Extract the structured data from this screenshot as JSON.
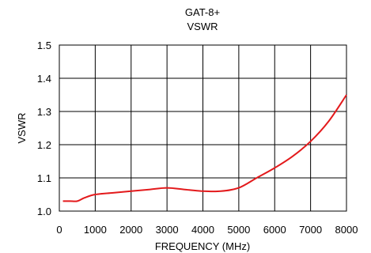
{
  "chart_data": {
    "type": "line",
    "title": "GAT-8+",
    "subtitle": "VSWR",
    "xlabel": "FREQUENCY (MHz)",
    "ylabel": "VSWR",
    "xlim": [
      0,
      8000
    ],
    "ylim": [
      1.0,
      1.5
    ],
    "x_ticks": [
      0,
      1000,
      2000,
      3000,
      4000,
      5000,
      6000,
      7000,
      8000
    ],
    "x_tick_labels": [
      "0",
      "1000",
      "2000",
      "3000",
      "4000",
      "5000",
      "6000",
      "7000",
      "8000"
    ],
    "y_ticks": [
      1.0,
      1.1,
      1.2,
      1.3,
      1.4,
      1.5
    ],
    "y_tick_labels": [
      "1.0",
      "1.1",
      "1.2",
      "1.3",
      "1.4",
      "1.5"
    ],
    "grid": true,
    "series": [
      {
        "color": "#e31a1c",
        "x": [
          100,
          300,
          500,
          700,
          1000,
          1500,
          2000,
          2500,
          3000,
          3500,
          4000,
          4500,
          5000,
          5500,
          6000,
          6500,
          7000,
          7500,
          8000
        ],
        "y": [
          1.03,
          1.03,
          1.03,
          1.04,
          1.05,
          1.055,
          1.06,
          1.065,
          1.07,
          1.065,
          1.06,
          1.06,
          1.07,
          1.1,
          1.13,
          1.165,
          1.21,
          1.27,
          1.35
        ]
      }
    ]
  }
}
